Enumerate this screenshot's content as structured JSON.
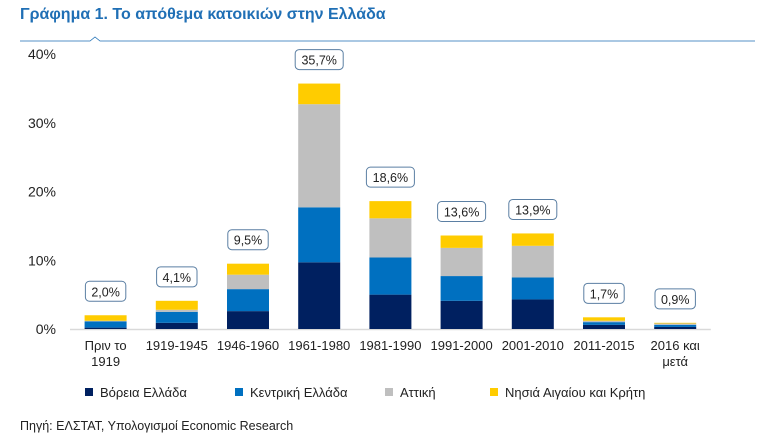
{
  "header": {
    "title": "Γράφημα 1. Το απόθεμα κατοικιών στην Ελλάδα"
  },
  "source": "Πηγή: ΕΛΣΤΑΤ, Υπολογισμοί Economic Research",
  "chart_data": {
    "type": "bar",
    "stacked": true,
    "title": "Γράφημα 1. Το απόθεμα κατοικιών στην Ελλάδα",
    "xlabel": "",
    "ylabel": "",
    "ylim": [
      0,
      40
    ],
    "yticks": [
      "0%",
      "10%",
      "20%",
      "30%",
      "40%"
    ],
    "ytick_values": [
      0,
      10,
      20,
      30,
      40
    ],
    "categories": [
      [
        "Πριν  το",
        "1919"
      ],
      [
        "1919-1945"
      ],
      [
        "1946-1960"
      ],
      [
        "1961-1980"
      ],
      [
        "1981-1990"
      ],
      [
        "1991-2000"
      ],
      [
        "2001-2010"
      ],
      [
        "2011-2015"
      ],
      [
        "2016 και",
        "μετά"
      ]
    ],
    "series": [
      {
        "name": "Βόρεια Ελλάδα",
        "color": "#002060",
        "values": [
          0.2,
          0.9,
          2.6,
          9.7,
          5.0,
          4.1,
          4.3,
          0.6,
          0.3
        ]
      },
      {
        "name": "Κεντρική  Ελλάδα",
        "color": "#0070c0",
        "values": [
          0.9,
          1.6,
          3.2,
          8.0,
          5.4,
          3.6,
          3.2,
          0.4,
          0.3
        ]
      },
      {
        "name": "Αττική",
        "color": "#bfbfbf",
        "values": [
          0.1,
          0.3,
          2.1,
          15.0,
          5.7,
          4.1,
          4.6,
          0.2,
          0.2
        ]
      },
      {
        "name": "Νησιά Αιγαίου και Κρήτη",
        "color": "#ffcc00",
        "values": [
          0.8,
          1.3,
          1.6,
          3.0,
          2.5,
          1.8,
          1.8,
          0.5,
          0.1
        ]
      }
    ],
    "totals": [
      "2,0%",
      "4,1%",
      "9,5%",
      "35,7%",
      "18,6%",
      "13,6%",
      "13,9%",
      "1,7%",
      "0,9%"
    ],
    "grid": false,
    "legend": "bottom"
  }
}
